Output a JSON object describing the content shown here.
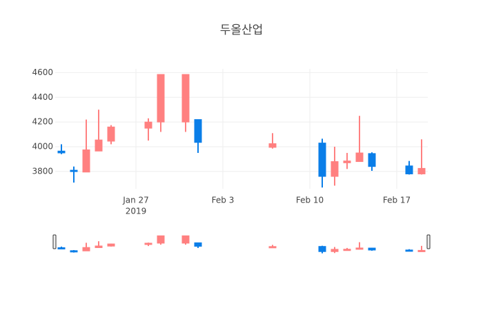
{
  "chart_data": {
    "type": "candlestick",
    "title": "두올산업",
    "x": [
      "2019-01-21",
      "2019-01-22",
      "2019-01-23",
      "2019-01-24",
      "2019-01-25",
      "2019-01-28",
      "2019-01-29",
      "2019-01-31",
      "2019-02-01",
      "2019-02-07",
      "2019-02-11",
      "2019-02-12",
      "2019-02-13",
      "2019-02-14",
      "2019-02-15",
      "2019-02-18",
      "2019-02-19"
    ],
    "open": [
      3965,
      3810,
      3795,
      3965,
      4045,
      4150,
      4200,
      4200,
      4220,
      3995,
      4030,
      3760,
      3870,
      3880,
      3945,
      3845,
      3780
    ],
    "high": [
      4020,
      3840,
      4220,
      4300,
      4175,
      4230,
      4585,
      4585,
      4220,
      4110,
      4065,
      4000,
      3950,
      4250,
      3955,
      3885,
      4060
    ],
    "low": [
      3940,
      3710,
      3795,
      3965,
      4020,
      4050,
      4120,
      4120,
      3950,
      3985,
      3670,
      3685,
      3820,
      3880,
      3805,
      3775,
      3775
    ],
    "close": [
      3950,
      3800,
      3975,
      4055,
      4160,
      4200,
      4585,
      4585,
      4035,
      4025,
      3760,
      3880,
      3885,
      3950,
      3840,
      3780,
      3825
    ],
    "increasing_color": "#ff8080",
    "decreasing_color": "#0a7ee8",
    "xlim": [
      "2019-01-20T12:00",
      "2019-02-19T12:00"
    ],
    "xticks": [
      {
        "value": "2019-01-27",
        "label": "Jan 27",
        "year": "2019"
      },
      {
        "value": "2019-02-03",
        "label": "Feb 3"
      },
      {
        "value": "2019-02-10",
        "label": "Feb 10"
      },
      {
        "value": "2019-02-17",
        "label": "Feb 17"
      }
    ],
    "ylim": [
      3660,
      4630
    ],
    "yticks": [
      3800,
      4000,
      4200,
      4400,
      4600
    ],
    "grid": true,
    "rangeslider": true
  }
}
